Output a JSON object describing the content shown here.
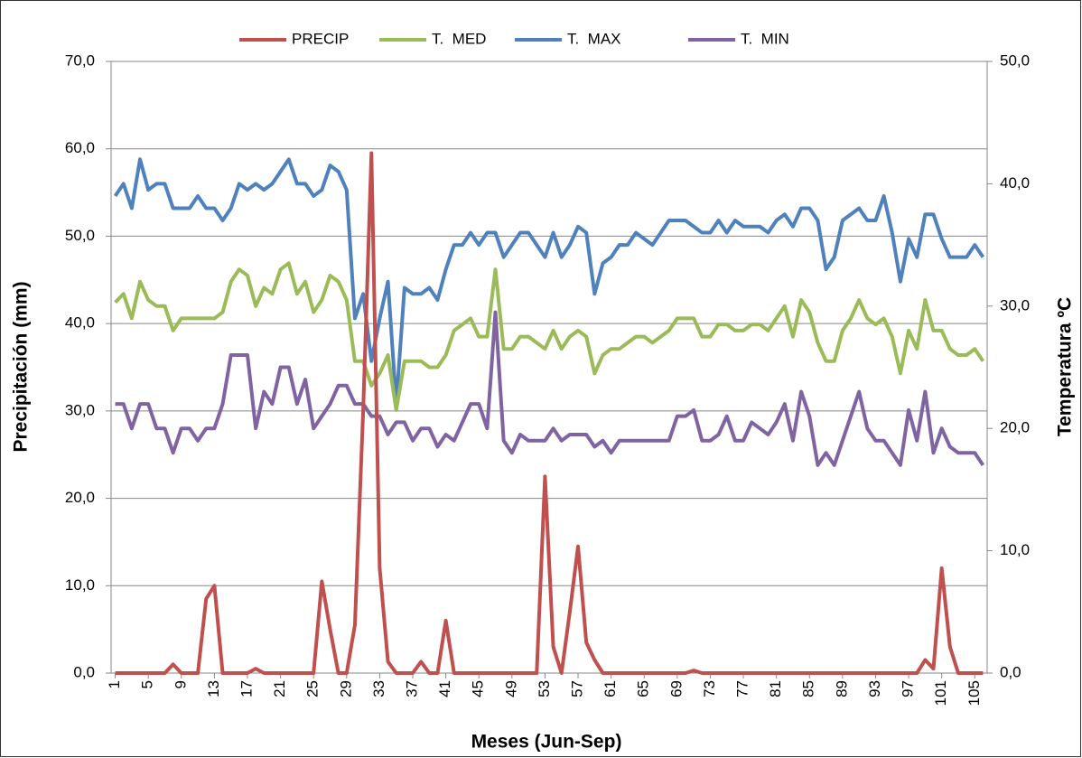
{
  "chart_data": {
    "type": "line",
    "x_label": "Meses (Jun-Sep)",
    "y_label": "Precipitación (mm)",
    "y2_label": "Temperatura ºC",
    "categories": [
      "1",
      null,
      null,
      null,
      "5",
      null,
      null,
      null,
      "9",
      null,
      null,
      null,
      "13",
      null,
      null,
      null,
      "17",
      null,
      null,
      null,
      "21",
      null,
      null,
      null,
      "25",
      null,
      null,
      null,
      "29",
      null,
      null,
      null,
      "33",
      null,
      null,
      null,
      "37",
      null,
      null,
      null,
      "41",
      null,
      null,
      null,
      "45",
      null,
      null,
      null,
      "49",
      null,
      null,
      null,
      "53",
      null,
      null,
      null,
      "57",
      null,
      null,
      null,
      "61",
      null,
      null,
      null,
      "65",
      null,
      null,
      null,
      "69",
      null,
      null,
      null,
      "73",
      null,
      null,
      null,
      "77",
      null,
      null,
      null,
      "81",
      null,
      null,
      null,
      "85",
      null,
      null,
      null,
      "89",
      null,
      null,
      null,
      "93",
      null,
      null,
      null,
      "97",
      null,
      null,
      null,
      "101",
      null,
      null,
      null,
      "105",
      null
    ],
    "series": [
      {
        "name": "PRECIP",
        "color": "#c0504d",
        "axis": "y",
        "values": [
          0,
          0,
          0,
          0,
          0,
          0,
          0,
          1.0,
          0,
          0,
          0,
          8.5,
          10.0,
          0,
          0,
          0,
          0,
          0.5,
          0,
          0,
          0,
          0,
          0,
          0,
          0,
          10.5,
          5,
          0,
          0,
          5.5,
          30,
          59.5,
          12,
          1.3,
          0,
          0,
          0,
          1.3,
          0,
          0,
          6,
          0,
          0,
          0,
          0,
          0,
          0,
          0,
          0,
          0,
          0,
          0,
          22.5,
          3,
          0,
          7,
          14.5,
          3.5,
          1.5,
          0,
          0,
          0,
          0,
          0,
          0,
          0,
          0,
          0,
          0,
          0,
          0.3,
          0,
          0,
          0,
          0,
          0,
          0,
          0,
          0,
          0,
          0,
          0,
          0,
          0,
          0,
          0,
          0,
          0,
          0,
          0,
          0,
          0,
          0,
          0,
          0,
          0,
          0,
          0,
          1.5,
          0.5,
          12,
          3,
          0,
          0,
          0,
          0
        ]
      },
      {
        "name": "T.  MED",
        "color": "#9bbb59",
        "axis": "y2",
        "values": [
          30.3,
          31,
          29,
          32,
          30.5,
          30,
          30,
          28,
          29,
          29,
          29,
          29,
          29,
          29.5,
          32,
          33,
          32.5,
          30,
          31.5,
          31,
          33,
          33.5,
          31,
          32,
          29.5,
          30.5,
          32.5,
          32,
          30.5,
          25.5,
          25.5,
          23.5,
          24.5,
          26,
          21.5,
          25.5,
          25.5,
          25.5,
          25,
          25,
          26,
          28,
          28.5,
          29,
          27.5,
          27.5,
          33,
          26.5,
          26.5,
          27.5,
          27.5,
          27,
          26.5,
          28,
          26.5,
          27.5,
          28,
          27.5,
          24.5,
          26,
          26.5,
          26.5,
          27,
          27.5,
          27.5,
          27,
          27.5,
          28,
          29,
          29,
          29,
          27.5,
          27.5,
          28.5,
          28.5,
          28,
          28,
          28.5,
          28.5,
          28,
          29,
          30,
          27.5,
          30.5,
          29.5,
          27,
          25.5,
          25.5,
          28,
          29,
          30.5,
          29,
          28.5,
          29,
          27.5,
          24.5,
          28,
          26.5,
          30.5,
          28,
          28,
          26.5,
          26,
          26,
          26.5,
          25.5
        ]
      },
      {
        "name": "T.  MAX",
        "color": "#4f81bd",
        "axis": "y2",
        "values": [
          39,
          40,
          38,
          42,
          39.5,
          40,
          40,
          38,
          38,
          38,
          39,
          38,
          38,
          37,
          38,
          40,
          39.5,
          40,
          39.5,
          40,
          41,
          42,
          40,
          40,
          39,
          39.5,
          41.5,
          41,
          39.5,
          29,
          31,
          25.5,
          29,
          32,
          22,
          31.5,
          31,
          31,
          31.5,
          30.5,
          33,
          35,
          35,
          36,
          35,
          36,
          36,
          34,
          35,
          36,
          36,
          35,
          34,
          36,
          34,
          35,
          36.5,
          36,
          31,
          33.5,
          34,
          35,
          35,
          36,
          35.5,
          35,
          36,
          37,
          37,
          37,
          36.5,
          36,
          36,
          37,
          36,
          37,
          36.5,
          36.5,
          36.5,
          36,
          37,
          37.5,
          36.5,
          38,
          38,
          37,
          33,
          34,
          37,
          37.5,
          38,
          37,
          37,
          39,
          36,
          32,
          35.5,
          34,
          37.5,
          37.5,
          35.5,
          34,
          34,
          34,
          35,
          34
        ]
      },
      {
        "name": "T.  MIN",
        "color": "#8064a2",
        "axis": "y2",
        "values": [
          22,
          22,
          20,
          22,
          22,
          20,
          20,
          18,
          20,
          20,
          19,
          20,
          20,
          22,
          26,
          26,
          26,
          20,
          23,
          22,
          25,
          25,
          22,
          24,
          20,
          21,
          22,
          23.5,
          23.5,
          22,
          22,
          21,
          21,
          19.5,
          20.5,
          20.5,
          19,
          20,
          20,
          18.5,
          19.5,
          19,
          20.5,
          22,
          22,
          20,
          29.5,
          19,
          18,
          19.5,
          19,
          19,
          19,
          20,
          19,
          19.5,
          19.5,
          19.5,
          18.5,
          19,
          18,
          19,
          19,
          19,
          19,
          19,
          19,
          19,
          21,
          21,
          21.5,
          19,
          19,
          19.5,
          21,
          19,
          19,
          20.5,
          20,
          19.5,
          20.5,
          22,
          19,
          23,
          21,
          17,
          18,
          17,
          19,
          21,
          23,
          20,
          19,
          19,
          18,
          17,
          21.5,
          19,
          23,
          18,
          20,
          18.5,
          18,
          18,
          18,
          17
        ]
      }
    ],
    "ylim": [
      0,
      70
    ],
    "yticks": [
      {
        "value": 0,
        "label": "0,0"
      },
      {
        "value": 10,
        "label": "10,0"
      },
      {
        "value": 20,
        "label": "20,0"
      },
      {
        "value": 30,
        "label": "30,0"
      },
      {
        "value": 40,
        "label": "40,0"
      },
      {
        "value": 50,
        "label": "50,0"
      },
      {
        "value": 60,
        "label": "60,0"
      },
      {
        "value": 70,
        "label": "70,0"
      }
    ],
    "y2lim": [
      0,
      50
    ],
    "y2ticks": [
      {
        "value": 0,
        "label": "0,0"
      },
      {
        "value": 10,
        "label": "10,0"
      },
      {
        "value": 20,
        "label": "20,0"
      },
      {
        "value": 30,
        "label": "30,0"
      },
      {
        "value": 40,
        "label": "40,0"
      },
      {
        "value": 50,
        "label": "50,0"
      }
    ],
    "grid": true,
    "legend": "top"
  }
}
